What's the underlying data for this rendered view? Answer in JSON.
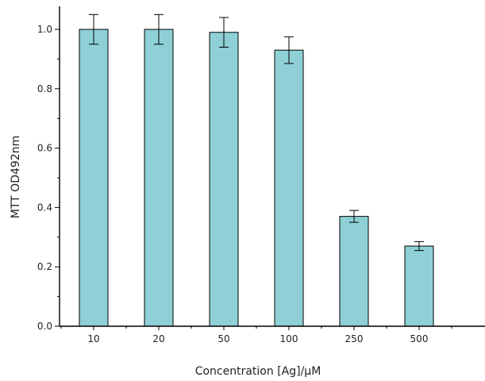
{
  "chart_data": {
    "type": "bar",
    "categories": [
      "10",
      "20",
      "50",
      "100",
      "250",
      "500"
    ],
    "values": [
      1.0,
      1.0,
      0.99,
      0.93,
      0.37,
      0.27
    ],
    "errors": [
      0.05,
      0.05,
      0.05,
      0.045,
      0.02,
      0.015
    ],
    "xlabel": "Concentration [Ag]/µM",
    "ylabel": "MTT OD492nm",
    "ylim": [
      0,
      1.0
    ],
    "yticks": [
      "0.0",
      "0.2",
      "0.4",
      "0.6",
      "0.8",
      "1.0"
    ],
    "grid": false,
    "legend": "none",
    "bar_color": "#8ED0D6"
  }
}
